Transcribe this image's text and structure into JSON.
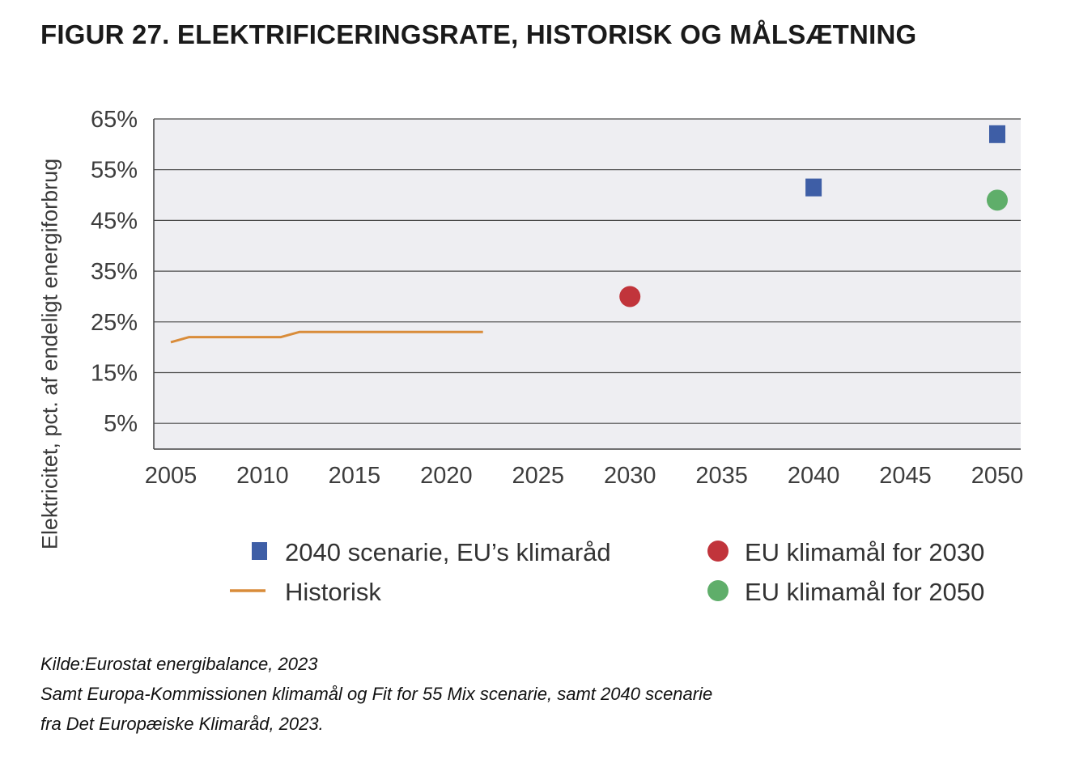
{
  "title": "FIGUR 27.  ELEKTRIFICERINGSRATE, HISTORISK OG MÅLSÆTNING",
  "chart_data": {
    "type": "line",
    "ylabel": "Elektricitet, pct. af endeligt energiforbrug",
    "xlabel": "",
    "x_ticks": [
      "2005",
      "2010",
      "2015",
      "2020",
      "2025",
      "2030",
      "2035",
      "2040",
      "2045",
      "2050"
    ],
    "y_ticks": [
      "65%",
      "55%",
      "45%",
      "35%",
      "25%",
      "15%",
      "5%"
    ],
    "ylim": [
      0,
      65
    ],
    "grid": true,
    "legend_position": "bottom",
    "series": [
      {
        "name": "Historisk",
        "kind": "line",
        "color": "#d98c3a",
        "points": [
          [
            2005,
            21
          ],
          [
            2006,
            22
          ],
          [
            2007,
            22
          ],
          [
            2008,
            22
          ],
          [
            2009,
            22
          ],
          [
            2010,
            22
          ],
          [
            2011,
            22
          ],
          [
            2012,
            23
          ],
          [
            2013,
            23
          ],
          [
            2014,
            23
          ],
          [
            2015,
            23
          ],
          [
            2016,
            23
          ],
          [
            2017,
            23
          ],
          [
            2018,
            23
          ],
          [
            2019,
            23
          ],
          [
            2020,
            23
          ],
          [
            2021,
            23
          ],
          [
            2022,
            23
          ]
        ]
      },
      {
        "name": "2040 scenarie, EU’s klimaråd",
        "kind": "square",
        "color": "#3e5ea6",
        "points": [
          [
            2040,
            51.5
          ],
          [
            2050,
            62
          ]
        ]
      },
      {
        "name": "EU klimamål for 2030",
        "kind": "circle",
        "color": "#c1343b",
        "points": [
          [
            2030,
            30
          ]
        ]
      },
      {
        "name": "EU klimamål for 2050",
        "kind": "circle",
        "color": "#5fae6a",
        "points": [
          [
            2050,
            49
          ]
        ]
      }
    ],
    "legend": [
      {
        "label": "2040 scenarie, EU’s klimaråd",
        "series": "2040 scenarie, EU’s klimaråd"
      },
      {
        "label": "EU klimamål for 2030",
        "series": "EU klimamål for 2030"
      },
      {
        "label": "Historisk",
        "series": "Historisk"
      },
      {
        "label": "EU klimamål for 2050",
        "series": "EU klimamål for 2050"
      }
    ]
  },
  "source": {
    "line1": "Kilde:Eurostat energibalance, 2023",
    "line2": "Samt Europa-Kommissionen klimamål og Fit for 55 Mix scenarie, samt 2040 scenarie",
    "line3": "fra Det Europæiske Klimaråd, 2023."
  }
}
